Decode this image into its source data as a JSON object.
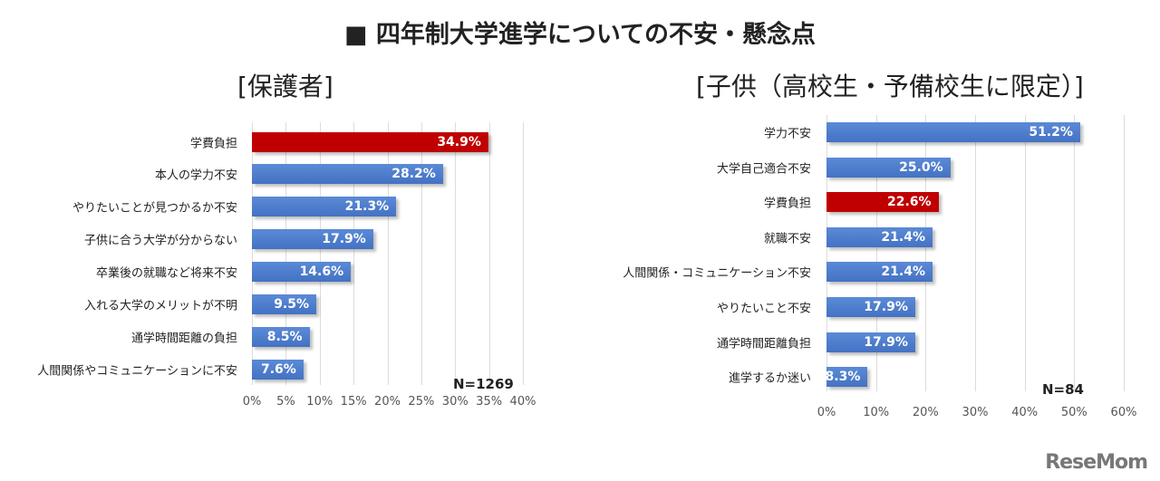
{
  "title": "■ 四年制大学進学についての不安・懸念点",
  "logo": "ReseMom",
  "colors": {
    "blue": "#4472c4",
    "red": "#c00000"
  },
  "chart_data": [
    {
      "type": "bar",
      "orientation": "horizontal",
      "title": "[保護者]",
      "note": "N=1269",
      "categories": [
        "学費負担",
        "本人の学力不安",
        "やりたいことが見つかるか不安",
        "子供に合う大学が分からない",
        "卒業後の就職など将来不安",
        "入れる大学のメリットが不明",
        "通学時間距離の負担",
        "人間関係やコミュニケーションに不安"
      ],
      "values": [
        34.9,
        28.2,
        21.3,
        17.9,
        14.6,
        9.5,
        8.5,
        7.6
      ],
      "labels": [
        "34.9%",
        "28.2%",
        "21.3%",
        "17.9%",
        "14.6%",
        "9.5%",
        "8.5%",
        "7.6%"
      ],
      "highlight": [
        0
      ],
      "xlim": [
        0,
        40
      ],
      "ticks": [
        "0%",
        "5%",
        "10%",
        "15%",
        "20%",
        "25%",
        "30%",
        "35%",
        "40%"
      ],
      "grid": true
    },
    {
      "type": "bar",
      "orientation": "horizontal",
      "title": "[子供（高校生・予備校生に限定）]",
      "note": "N=84",
      "categories": [
        "学力不安",
        "大学自己適合不安",
        "学費負担",
        "就職不安",
        "人間関係・コミュニケーション不安",
        "やりたいこと不安",
        "通学時間距離負担",
        "進学するか迷い"
      ],
      "values": [
        51.2,
        25.0,
        22.6,
        21.4,
        21.4,
        17.9,
        17.9,
        8.3
      ],
      "labels": [
        "51.2%",
        "25.0%",
        "22.6%",
        "21.4%",
        "21.4%",
        "17.9%",
        "17.9%",
        "8.3%"
      ],
      "highlight": [
        2
      ],
      "xlim": [
        0,
        60
      ],
      "ticks": [
        "0%",
        "10%",
        "20%",
        "30%",
        "40%",
        "50%",
        "60%"
      ],
      "grid": true
    }
  ]
}
